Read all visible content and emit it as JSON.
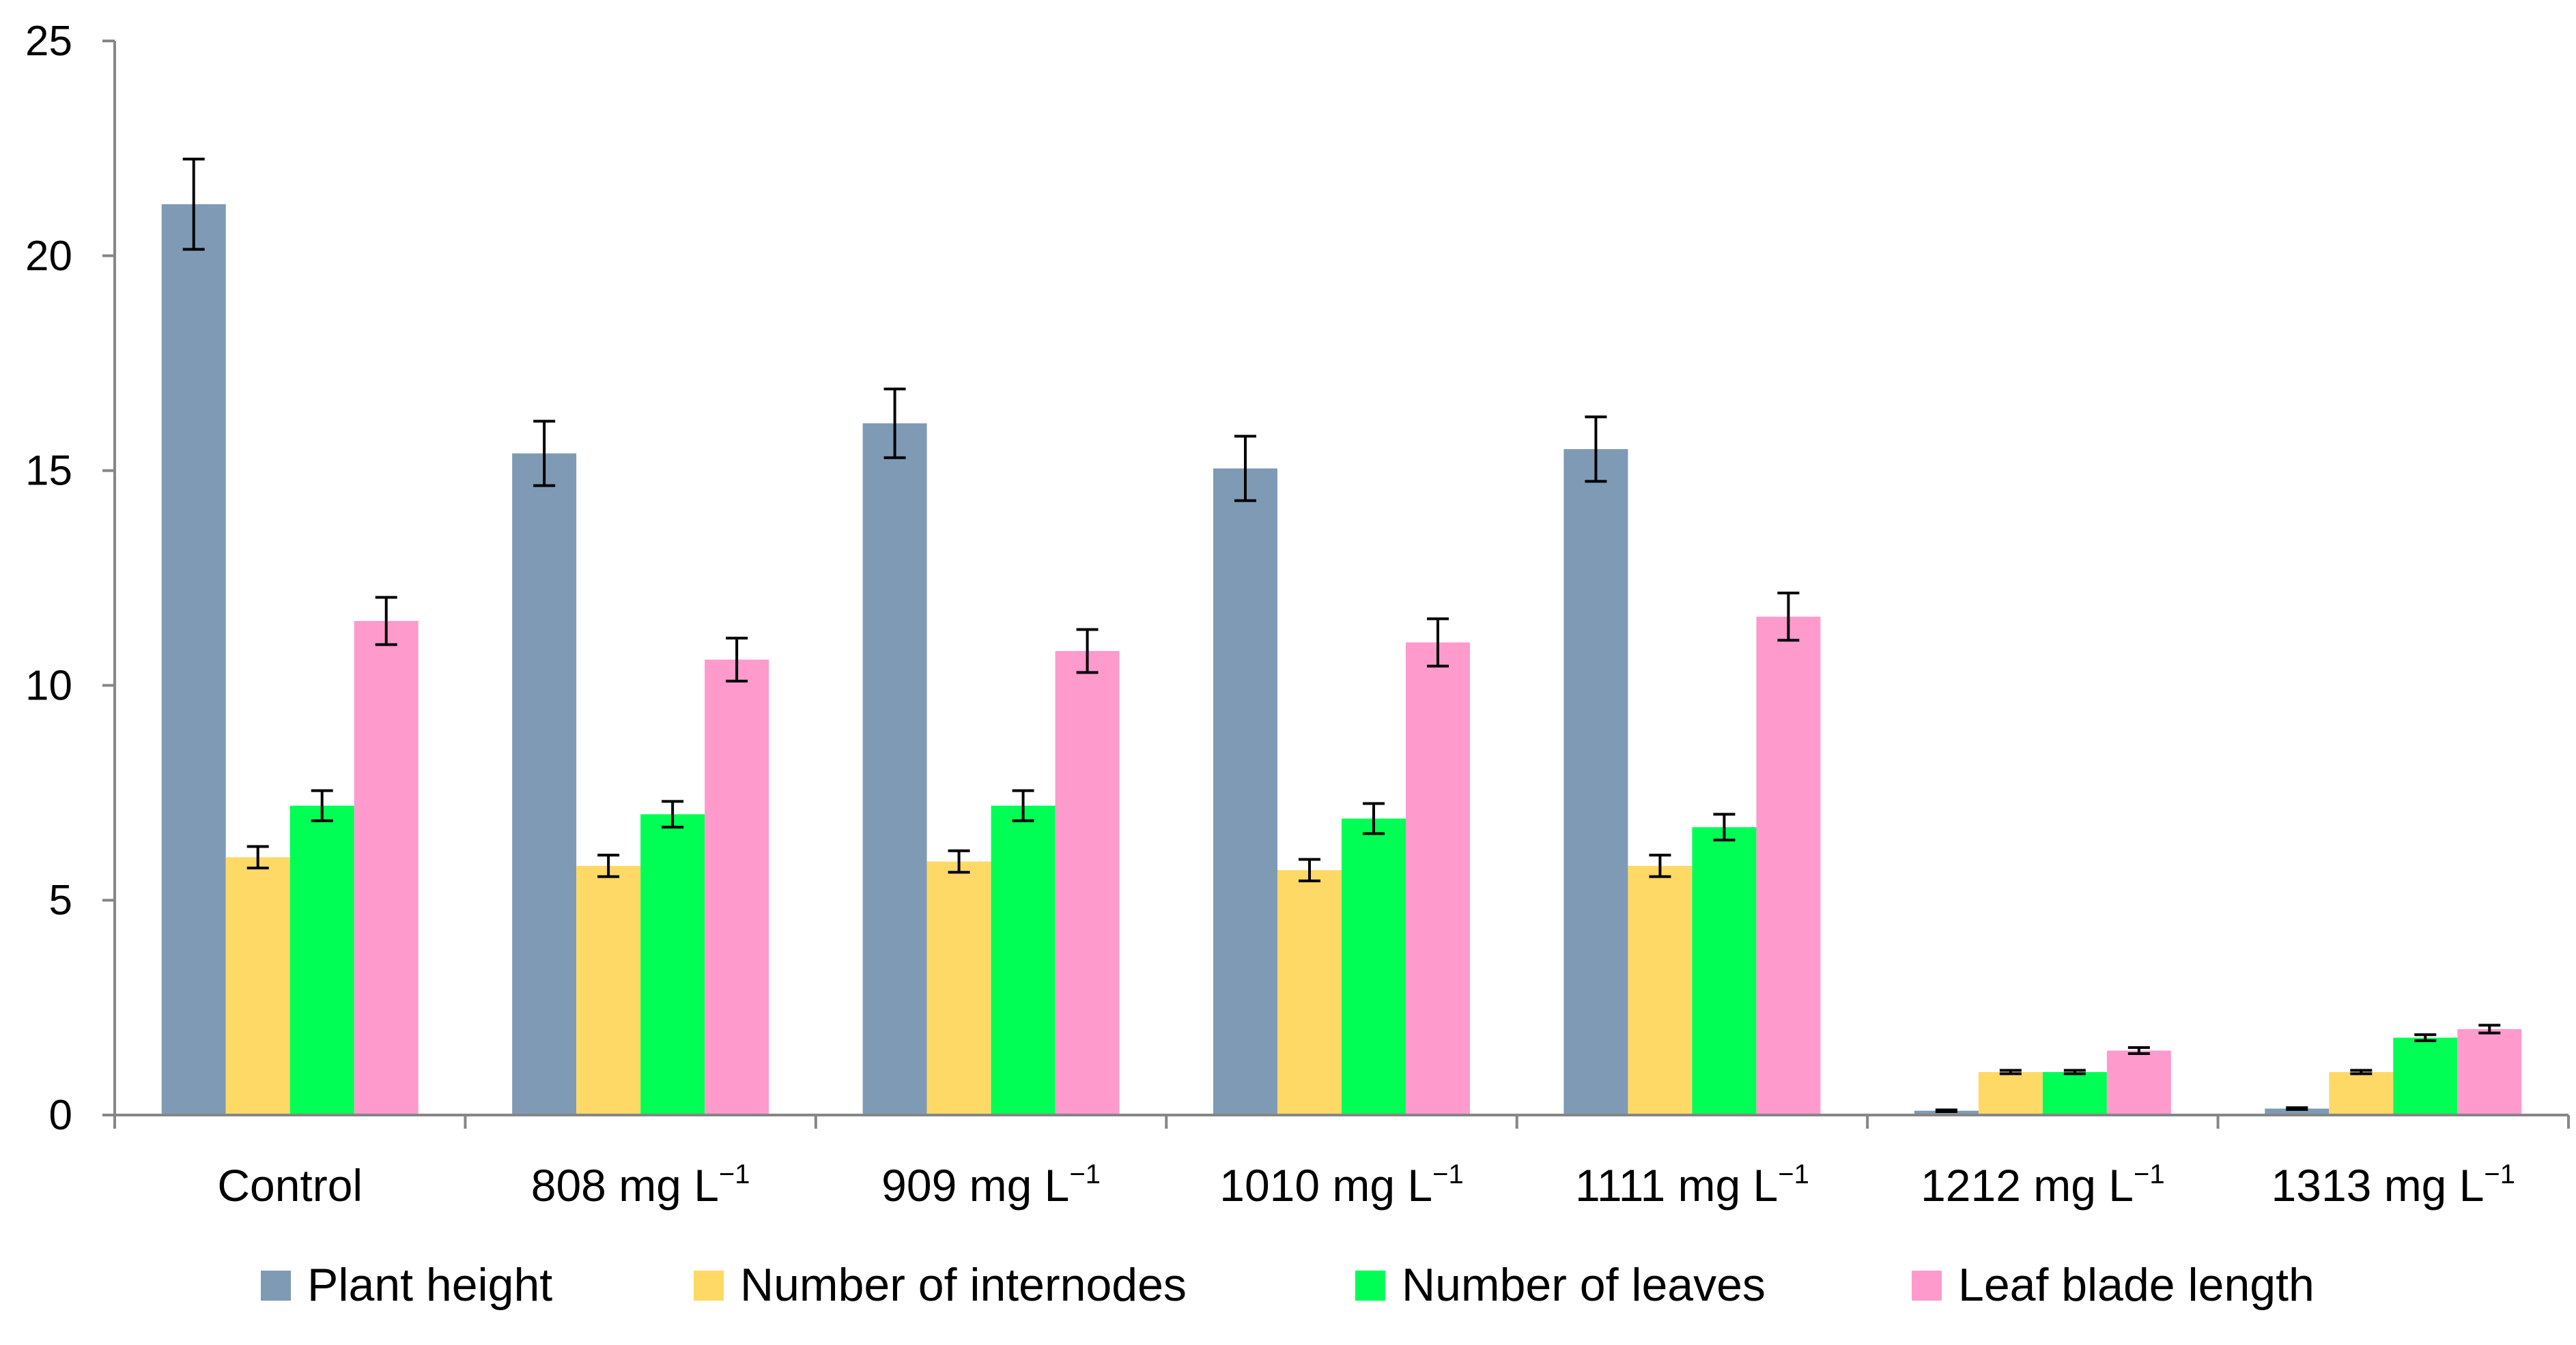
{
  "chart_data": {
    "type": "bar",
    "title": "",
    "xlabel": "",
    "ylabel": "",
    "ylim": [
      0,
      25
    ],
    "yticks": [
      0,
      5,
      10,
      15,
      20,
      25
    ],
    "grid": false,
    "legend_position": "bottom",
    "categories": [
      {
        "main": "Control",
        "sup": ""
      },
      {
        "main": "808 mg L",
        "sup": "−1"
      },
      {
        "main": "909 mg L",
        "sup": "−1"
      },
      {
        "main": "1010 mg L",
        "sup": "−1"
      },
      {
        "main": "1111 mg L",
        "sup": "−1"
      },
      {
        "main": "1212 mg L",
        "sup": "−1"
      },
      {
        "main": "1313 mg L",
        "sup": "−1"
      }
    ],
    "series": [
      {
        "name": "Plant height",
        "color": "#7f9ab5",
        "values": [
          21.2,
          15.4,
          16.1,
          15.05,
          15.5,
          0.1,
          0.15
        ],
        "errors": [
          1.05,
          0.75,
          0.8,
          0.75,
          0.75,
          0.02,
          0.02
        ]
      },
      {
        "name": "Number of internodes",
        "color": "#ffd966",
        "values": [
          6.0,
          5.8,
          5.9,
          5.7,
          5.8,
          1.0,
          1.0
        ],
        "errors": [
          0.25,
          0.25,
          0.25,
          0.25,
          0.25,
          0.04,
          0.04
        ]
      },
      {
        "name": "Number of leaves",
        "color": "#00ff55",
        "values": [
          7.2,
          7.0,
          7.2,
          6.9,
          6.7,
          1.0,
          1.8
        ],
        "errors": [
          0.35,
          0.3,
          0.35,
          0.35,
          0.3,
          0.04,
          0.07
        ]
      },
      {
        "name": "Leaf blade length",
        "color": "#ff9acd",
        "values": [
          11.5,
          10.6,
          10.8,
          11.0,
          11.6,
          1.5,
          2.0
        ],
        "errors": [
          0.55,
          0.5,
          0.5,
          0.55,
          0.55,
          0.07,
          0.09
        ]
      }
    ]
  }
}
